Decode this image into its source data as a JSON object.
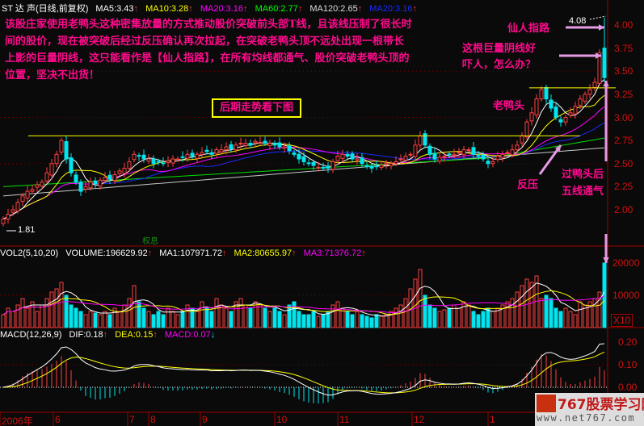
{
  "header": {
    "title": "ST 达 声(日线,前复权)",
    "ma5": "MA5:3.43",
    "ma10": "MA10:3.28",
    "ma20": "MA20:3.16",
    "ma60": "MA60:2.77",
    "ma120": "MA120:2.65",
    "ma_extra": "MA20:3.16"
  },
  "vol_header": {
    "label": "VOL2(5,10,20)",
    "volume": "VOLUME:196629.92",
    "ma1": "MA1:107971.72",
    "ma2": "MA2:80655.97",
    "ma3": "MA3:71376.72"
  },
  "macd_header": {
    "label": "MACD(12,26,9)",
    "dif": "DIF:0.18",
    "dea": "DEA:0.15",
    "macd": "MACD:0.07"
  },
  "annotations": {
    "main_text": "该股庄家使用老鸭头这种密集放量的方式推动股价突破前头部T线，且该线压制了很长时间的股价，现在被突破后经过反压确认再次拉起，在突破老鸭头顶不远处出现一根带长上影的巨量阴线，这只能看作是【仙人指路】，在所有均线都通气、股价突破老鸭头顶的位置，坚决不出货！",
    "box": "后期走势看下图",
    "xianren": "仙人指路",
    "big_yin_1": "这根巨量阴线好",
    "big_yin_2": "吓人，怎么办？",
    "laoyatou": "老鸭头",
    "fanya": "反压",
    "guo_1": "过鸭头后",
    "guo_2": "五线通气",
    "high_label": "4.08",
    "low_label": "1.81",
    "quanxi": "权息"
  },
  "logo": {
    "name": "767股票学习网",
    "url": "www.net767.com"
  },
  "colors": {
    "up": "#ff4040",
    "down": "#00e5ee",
    "ma5": "#ffffff",
    "ma10": "#ffff00",
    "ma20": "#ff00ff",
    "ma30": "#1a2aff",
    "ma60": "#00e000",
    "ma120": "#c8c8c8",
    "annotation": "#ff0a8c",
    "arrow": "#e49be4"
  },
  "chart_data": {
    "type": "candlestick",
    "price_axis": {
      "ticks": [
        "4.00",
        "3.75",
        "3.50",
        "3.25",
        "3.00",
        "2.75",
        "2.50",
        "2.25",
        "2.00"
      ],
      "range": [
        1.8,
        4.1
      ]
    },
    "volume_axis": {
      "ticks": [
        "20000",
        "10000"
      ],
      "multiplier": "X10"
    },
    "macd_axis": {
      "ticks": [
        "0.20",
        "0.10",
        "0.00"
      ]
    },
    "date_labels": [
      "2006年",
      "6",
      "7",
      "8",
      "9",
      "10",
      "11",
      "12",
      "1"
    ],
    "close": [
      1.9,
      1.95,
      2.0,
      2.08,
      2.15,
      2.2,
      2.22,
      2.27,
      2.3,
      2.4,
      2.5,
      2.6,
      2.75,
      2.55,
      2.4,
      2.3,
      2.2,
      2.25,
      2.3,
      2.28,
      2.32,
      2.35,
      2.33,
      2.38,
      2.42,
      2.45,
      2.52,
      2.6,
      2.58,
      2.55,
      2.55,
      2.5,
      2.52,
      2.5,
      2.53,
      2.55,
      2.55,
      2.57,
      2.6,
      2.58,
      2.6,
      2.62,
      2.63,
      2.6,
      2.65,
      2.65,
      2.68,
      2.66,
      2.7,
      2.72,
      2.72,
      2.7,
      2.74,
      2.73,
      2.72,
      2.72,
      2.7,
      2.68,
      2.68,
      2.64,
      2.6,
      2.55,
      2.52,
      2.5,
      2.48,
      2.46,
      2.45,
      2.45,
      2.52,
      2.58,
      2.6,
      2.58,
      2.55,
      2.55,
      2.5,
      2.47,
      2.45,
      2.47,
      2.48,
      2.5,
      2.5,
      2.52,
      2.55,
      2.58,
      2.6,
      2.7,
      2.8,
      2.7,
      2.6,
      2.55,
      2.57,
      2.58,
      2.6,
      2.6,
      2.62,
      2.65,
      2.65,
      2.6,
      2.58,
      2.55,
      2.5,
      2.52,
      2.58,
      2.6,
      2.62,
      2.65,
      2.7,
      2.8,
      2.95,
      3.05,
      3.2,
      3.3,
      3.2,
      3.1,
      3.0,
      2.95,
      3.0,
      3.05,
      3.12,
      3.2,
      3.25,
      3.3,
      3.38,
      3.7,
      3.43
    ],
    "last_candle": {
      "open": 3.75,
      "high": 4.08,
      "close": 3.43
    },
    "volume": [
      4000,
      6000,
      5000,
      7000,
      9000,
      6000,
      8000,
      5000,
      7000,
      9000,
      11000,
      12000,
      14000,
      10000,
      7000,
      6000,
      5000,
      4000,
      5000,
      4500,
      4000,
      5000,
      4000,
      6000,
      5000,
      7000,
      9000,
      13000,
      8000,
      6000,
      5000,
      4000,
      5000,
      4000,
      6000,
      5000,
      4000,
      5000,
      7000,
      6000,
      5000,
      8000,
      6000,
      5000,
      9000,
      7000,
      6000,
      5000,
      8000,
      9000,
      7000,
      6000,
      8000,
      7000,
      6000,
      5000,
      6000,
      5000,
      4000,
      7000,
      8000,
      5000,
      4000,
      4000,
      5000,
      3500,
      4000,
      5000,
      7000,
      8000,
      6000,
      5000,
      4000,
      5000,
      4000,
      3500,
      3000,
      4000,
      3500,
      4000,
      5000,
      6000,
      7000,
      9000,
      12000,
      15000,
      18000,
      10000,
      7000,
      6000,
      5000,
      5500,
      6000,
      7000,
      6000,
      8000,
      7000,
      5000,
      4000,
      5000,
      6000,
      5000,
      6000,
      7000,
      8000,
      9000,
      11000,
      13000,
      15000,
      14000,
      16000,
      9000,
      10000,
      9000,
      6000,
      5000,
      6000,
      5000,
      4000,
      8000,
      7000,
      8000,
      9000,
      11000,
      20000
    ],
    "resistance_lines": [
      2.8,
      3.32
    ]
  }
}
